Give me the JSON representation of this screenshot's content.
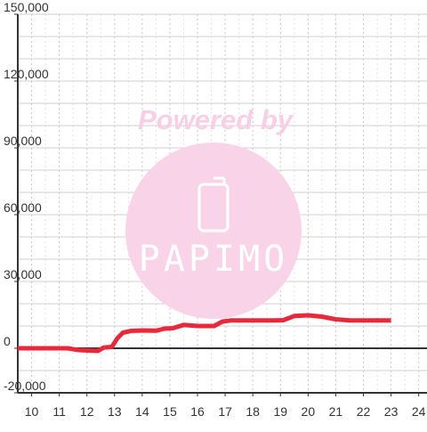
{
  "watermark": {
    "text": "Powered by",
    "logo_text": "PAPIMO",
    "color": "#f9cfe6",
    "icon": "phone-icon"
  },
  "colors": {
    "series": "#e8283b",
    "grid": "#c8c8c8",
    "axis": "#333333",
    "background": "#ffffff"
  },
  "chart_data": {
    "type": "line",
    "title": "",
    "xlabel": "",
    "ylabel": "",
    "xlim": [
      9.5,
      24.3
    ],
    "ylim": [
      -20000,
      150000
    ],
    "x_ticks": [
      10,
      11,
      12,
      13,
      14,
      15,
      16,
      17,
      18,
      19,
      20,
      21,
      22,
      23,
      24
    ],
    "x_tick_labels": [
      "10",
      "11",
      "12",
      "13",
      "14",
      "15",
      "16",
      "17",
      "18",
      "19",
      "20",
      "21",
      "22",
      "23",
      "24"
    ],
    "y_ticks": [
      -20000,
      0,
      30000,
      60000,
      90000,
      120000,
      150000
    ],
    "y_tick_labels": [
      "-20,000",
      "0",
      "30,000",
      "60,000",
      "90,000",
      "120,000",
      "150,000"
    ],
    "grid": true,
    "legend": "none",
    "series": [
      {
        "x": [
          9.5,
          11.3,
          11.7,
          12.0,
          12.4,
          12.6,
          12.9,
          13.1,
          13.3,
          13.6,
          14.0,
          14.5,
          14.8,
          15.1,
          15.5,
          16.0,
          16.6,
          16.9,
          17.2,
          18.0,
          18.8,
          19.1,
          19.5,
          20.0,
          20.5,
          21.0,
          21.5,
          22.0,
          22.5,
          23.0
        ],
        "y": [
          0,
          0,
          -800,
          -1000,
          -1200,
          300,
          600,
          4500,
          7000,
          7800,
          8000,
          7900,
          8800,
          9000,
          10500,
          10000,
          10000,
          12000,
          12500,
          12500,
          12500,
          12600,
          14500,
          14800,
          14200,
          13000,
          12500,
          12500,
          12500,
          12500
        ]
      }
    ]
  }
}
